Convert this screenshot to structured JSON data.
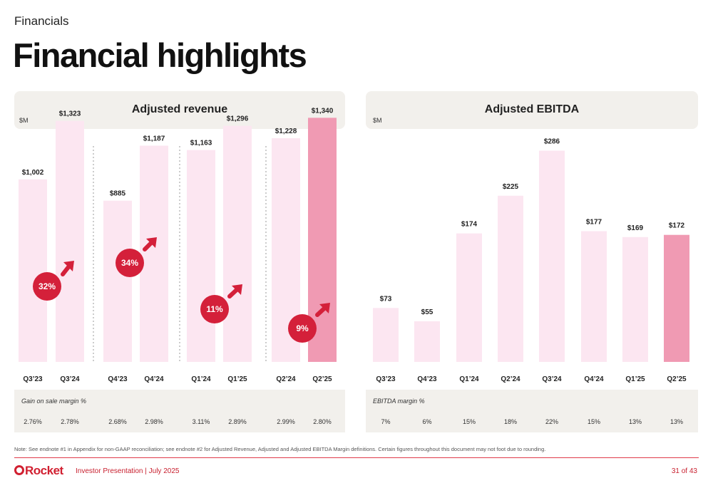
{
  "section": "Financials",
  "title": "Financial highlights",
  "colors": {
    "bar_light": "#fce6f1",
    "bar_highlight": "#f09ab3",
    "accent_red": "#d4203a",
    "panel_bg": "#f2f0ec"
  },
  "revenue_panel": {
    "title": "Adjusted revenue",
    "unit": "$M"
  },
  "ebitda_panel": {
    "title": "Adjusted EBITDA",
    "unit": "$M"
  },
  "chart_data": [
    {
      "type": "bar",
      "title": "Adjusted revenue",
      "ylabel": "$M",
      "ylim": [
        0,
        1400
      ],
      "categories": [
        "Q3’23",
        "Q3’24",
        "Q4’23",
        "Q4’24",
        "Q1’24",
        "Q1’25",
        "Q2’24",
        "Q2’25"
      ],
      "values": [
        1002,
        1323,
        885,
        1187,
        1163,
        1296,
        1228,
        1340
      ],
      "labels": [
        "$1,002",
        "$1,323",
        "$885",
        "$1,187",
        "$1,163",
        "$1,296",
        "$1,228",
        "$1,340"
      ],
      "highlight_index": 7,
      "growth_annotations": [
        "32%",
        "34%",
        "11%",
        "9%"
      ],
      "margin_title": "Gain on sale margin %",
      "margins": [
        "2.76%",
        "2.78%",
        "2.68%",
        "2.98%",
        "3.11%",
        "2.89%",
        "2.99%",
        "2.80%"
      ]
    },
    {
      "type": "bar",
      "title": "Adjusted EBITDA",
      "ylabel": "$M",
      "ylim": [
        0,
        300
      ],
      "categories": [
        "Q3’23",
        "Q4’23",
        "Q1’24",
        "Q2’24",
        "Q3’24",
        "Q4’24",
        "Q1’25",
        "Q2’25"
      ],
      "values": [
        73,
        55,
        174,
        225,
        286,
        177,
        169,
        172
      ],
      "labels": [
        "$73",
        "$55",
        "$174",
        "$225",
        "$286",
        "$177",
        "$169",
        "$172"
      ],
      "highlight_index": 7,
      "margin_title": "EBITDA margin %",
      "margins": [
        "7%",
        "6%",
        "15%",
        "18%",
        "22%",
        "15%",
        "13%",
        "13%"
      ]
    }
  ],
  "footnote": "Note: See endnote #1 in Appendix for non-GAAP reconciliation; see endnote #2 for Adjusted Revenue, Adjusted and Adjusted EBITDA Margin definitions. Certain figures throughout this document may not foot due to rounding.",
  "footer": {
    "logo": "Rocket",
    "text": "Investor Presentation | July 2025",
    "page": "31 of 43"
  }
}
